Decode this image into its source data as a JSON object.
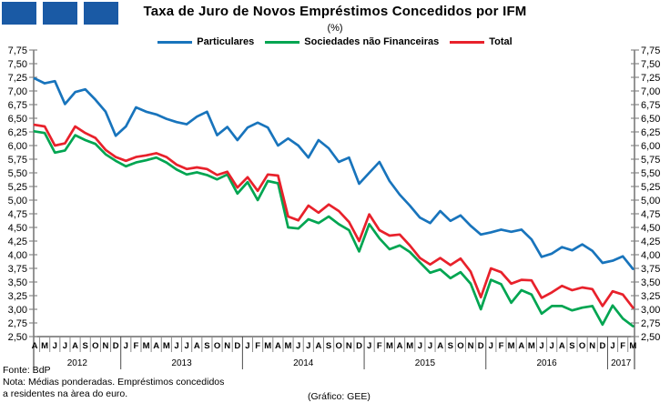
{
  "logo": {
    "square_count": 3,
    "color": "#1a5aa5"
  },
  "footer": {
    "source": "Fonte: BdP",
    "note_line1": "Nota: Médias ponderadas. Empréstimos concedidos",
    "note_line2": "a residentes na àrea do euro.",
    "credit": "(Gráfico: GEE)"
  },
  "chart_data": {
    "type": "line",
    "title": "Taxa de Juro de Novos Empréstimos Concedidos por IFM",
    "subtitle": "(%)",
    "legend_position": "top-center",
    "grid": false,
    "y_axis": {
      "min": 2.5,
      "max": 7.75,
      "step": 0.25,
      "sides": [
        "left",
        "right"
      ],
      "tick_labels": [
        "7,75",
        "7,50",
        "7,25",
        "7,00",
        "6,75",
        "6,50",
        "6,25",
        "6,00",
        "5,75",
        "5,50",
        "5,25",
        "5,00",
        "4,75",
        "4,50",
        "4,25",
        "4,00",
        "3,75",
        "3,50",
        "3,25",
        "3,00",
        "2,75",
        "2,50"
      ]
    },
    "x_axis": {
      "start": "2012-04",
      "end": "2017-03",
      "letters": [
        "A",
        "M",
        "J",
        "J",
        "A",
        "S",
        "O",
        "N",
        "D",
        "J",
        "F",
        "M",
        "A",
        "M",
        "J",
        "J",
        "A",
        "S",
        "O",
        "N",
        "D",
        "J",
        "F",
        "M",
        "A",
        "M",
        "J",
        "J",
        "A",
        "S",
        "O",
        "N",
        "D",
        "J",
        "F",
        "M",
        "A",
        "M",
        "J",
        "J",
        "A",
        "S",
        "O",
        "N",
        "D",
        "J",
        "F",
        "M",
        "A",
        "M",
        "J",
        "J",
        "A",
        "S",
        "O",
        "N",
        "D",
        "J",
        "F",
        "M"
      ],
      "years": [
        {
          "label": "2012",
          "months": 9
        },
        {
          "label": "2013",
          "months": 12
        },
        {
          "label": "2014",
          "months": 12
        },
        {
          "label": "2015",
          "months": 12
        },
        {
          "label": "2016",
          "months": 12
        },
        {
          "label": "2017",
          "months": 3
        }
      ]
    },
    "series": [
      {
        "name": "Particulares",
        "color": "#1874bc",
        "values": [
          7.23,
          7.14,
          7.18,
          6.76,
          6.98,
          7.03,
          6.84,
          6.62,
          6.18,
          6.35,
          6.7,
          6.62,
          6.57,
          6.49,
          6.43,
          6.39,
          6.53,
          6.62,
          6.19,
          6.34,
          6.1,
          6.33,
          6.42,
          6.33,
          6.0,
          6.13,
          6.0,
          5.78,
          6.1,
          5.95,
          5.7,
          5.78,
          5.3,
          5.5,
          5.7,
          5.35,
          5.1,
          4.9,
          4.68,
          4.58,
          4.8,
          4.62,
          4.72,
          4.53,
          4.37,
          4.41,
          4.46,
          4.42,
          4.46,
          4.28,
          3.96,
          4.02,
          4.14,
          4.08,
          4.19,
          4.07,
          3.85,
          3.89,
          3.97,
          3.74
        ]
      },
      {
        "name": "Sociedades não Financeiras",
        "color": "#00a551",
        "values": [
          6.26,
          6.23,
          5.87,
          5.91,
          6.19,
          6.1,
          6.03,
          5.84,
          5.72,
          5.62,
          5.69,
          5.73,
          5.78,
          5.69,
          5.56,
          5.47,
          5.51,
          5.46,
          5.38,
          5.47,
          5.12,
          5.33,
          5.0,
          5.35,
          5.31,
          4.5,
          4.48,
          4.65,
          4.58,
          4.7,
          4.56,
          4.45,
          4.06,
          4.56,
          4.3,
          4.1,
          4.17,
          4.05,
          3.86,
          3.67,
          3.73,
          3.57,
          3.68,
          3.47,
          3.0,
          3.54,
          3.46,
          3.12,
          3.35,
          3.27,
          2.92,
          3.06,
          3.06,
          2.98,
          3.03,
          3.06,
          2.72,
          3.07,
          2.83,
          2.69
        ]
      },
      {
        "name": "Total",
        "color": "#e8212b",
        "values": [
          6.38,
          6.35,
          6.0,
          6.04,
          6.35,
          6.23,
          6.14,
          5.92,
          5.79,
          5.72,
          5.79,
          5.82,
          5.86,
          5.79,
          5.65,
          5.57,
          5.6,
          5.57,
          5.46,
          5.52,
          5.23,
          5.42,
          5.17,
          5.47,
          5.45,
          4.7,
          4.63,
          4.9,
          4.77,
          4.92,
          4.8,
          4.6,
          4.25,
          4.74,
          4.45,
          4.35,
          4.37,
          4.17,
          3.94,
          3.82,
          3.94,
          3.81,
          3.93,
          3.69,
          3.22,
          3.75,
          3.68,
          3.47,
          3.54,
          3.53,
          3.21,
          3.31,
          3.43,
          3.35,
          3.4,
          3.37,
          3.06,
          3.33,
          3.27,
          3.03
        ]
      }
    ]
  }
}
